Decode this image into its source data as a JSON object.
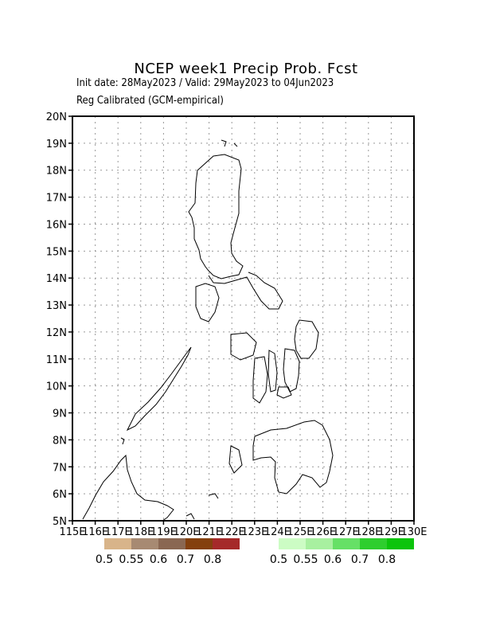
{
  "header": {
    "title": "NCEP week1 Precip Prob. Fcst",
    "line1": "Init date: 28May2023 / Valid: 29May2023 to 04Jun2023",
    "line2": "Reg Calibrated (GCM-empirical)"
  },
  "axes": {
    "lon_range": [
      115,
      130
    ],
    "lat_range": [
      5,
      20
    ],
    "lon_labels": [
      "115E",
      "116E",
      "117E",
      "118E",
      "119E",
      "120E",
      "121E",
      "122E",
      "123E",
      "124E",
      "125E",
      "126E",
      "127E",
      "128E",
      "129E",
      "130E"
    ],
    "lat_labels": [
      "20N",
      "19N",
      "18N",
      "17N",
      "16N",
      "15N",
      "14N",
      "13N",
      "12N",
      "11N",
      "10N",
      "9N",
      "8N",
      "7N",
      "6N",
      "5N"
    ],
    "grid": true
  },
  "legend": {
    "dry": {
      "colors": [
        "#d8b48a",
        "#a78a72",
        "#8a6752",
        "#84400e",
        "#a52a2a"
      ],
      "labels": [
        "0.5",
        "0.55",
        "0.6",
        "0.7",
        "0.8"
      ]
    },
    "wet": {
      "colors": [
        "#ccfcc4",
        "#a8f0a0",
        "#66e066",
        "#2ece2e",
        "#0cc40c"
      ],
      "labels": [
        "0.5",
        "0.55",
        "0.6",
        "0.7",
        "0.8"
      ]
    }
  },
  "chart_data": {
    "type": "heatmap",
    "cell_deg": 0.5,
    "dry_cells": [],
    "wet_cells": []
  }
}
